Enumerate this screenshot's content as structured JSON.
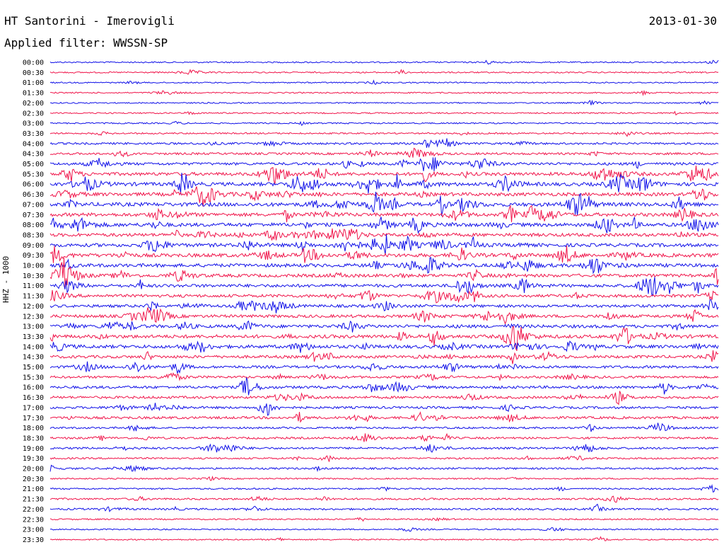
{
  "header": {
    "station": "HT Santorini - Imerovigli",
    "date": "2013-01-30",
    "filter": "Applied filter: WWSSN-SP"
  },
  "chart_data": {
    "type": "line",
    "title": "",
    "ylabel": "HHZ - 1000",
    "xlabel": "",
    "series_colors": [
      "#1010e8",
      "#f0144a"
    ],
    "rows": [
      {
        "time": "00:00",
        "color": "#1010e8",
        "activity": 0.15
      },
      {
        "time": "00:30",
        "color": "#f0144a",
        "activity": 0.15
      },
      {
        "time": "01:00",
        "color": "#1010e8",
        "activity": 0.12
      },
      {
        "time": "01:30",
        "color": "#f0144a",
        "activity": 0.12
      },
      {
        "time": "02:00",
        "color": "#1010e8",
        "activity": 0.12
      },
      {
        "time": "02:30",
        "color": "#f0144a",
        "activity": 0.15
      },
      {
        "time": "03:00",
        "color": "#1010e8",
        "activity": 0.15
      },
      {
        "time": "03:30",
        "color": "#f0144a",
        "activity": 0.2
      },
      {
        "time": "04:00",
        "color": "#1010e8",
        "activity": 0.35
      },
      {
        "time": "04:30",
        "color": "#f0144a",
        "activity": 0.4
      },
      {
        "time": "05:00",
        "color": "#1010e8",
        "activity": 0.55
      },
      {
        "time": "05:30",
        "color": "#f0144a",
        "activity": 0.75
      },
      {
        "time": "06:00",
        "color": "#1010e8",
        "activity": 0.85
      },
      {
        "time": "06:30",
        "color": "#f0144a",
        "activity": 0.8
      },
      {
        "time": "07:00",
        "color": "#1010e8",
        "activity": 0.9
      },
      {
        "time": "07:30",
        "color": "#f0144a",
        "activity": 0.8
      },
      {
        "time": "08:00",
        "color": "#1010e8",
        "activity": 0.85
      },
      {
        "time": "08:30",
        "color": "#f0144a",
        "activity": 0.75
      },
      {
        "time": "09:00",
        "color": "#1010e8",
        "activity": 0.8
      },
      {
        "time": "09:30",
        "color": "#f0144a",
        "activity": 0.85
      },
      {
        "time": "10:00",
        "color": "#1010e8",
        "activity": 0.8
      },
      {
        "time": "10:30",
        "color": "#f0144a",
        "activity": 0.7
      },
      {
        "time": "11:00",
        "color": "#1010e8",
        "activity": 0.7
      },
      {
        "time": "11:30",
        "color": "#f0144a",
        "activity": 0.65
      },
      {
        "time": "12:00",
        "color": "#1010e8",
        "activity": 0.6
      },
      {
        "time": "12:30",
        "color": "#f0144a",
        "activity": 0.65
      },
      {
        "time": "13:00",
        "color": "#1010e8",
        "activity": 0.7
      },
      {
        "time": "13:30",
        "color": "#f0144a",
        "activity": 0.8
      },
      {
        "time": "14:00",
        "color": "#1010e8",
        "activity": 0.75
      },
      {
        "time": "14:30",
        "color": "#f0144a",
        "activity": 0.6
      },
      {
        "time": "15:00",
        "color": "#1010e8",
        "activity": 0.55
      },
      {
        "time": "15:30",
        "color": "#f0144a",
        "activity": 0.45
      },
      {
        "time": "16:00",
        "color": "#1010e8",
        "activity": 0.55
      },
      {
        "time": "16:30",
        "color": "#f0144a",
        "activity": 0.5
      },
      {
        "time": "17:00",
        "color": "#1010e8",
        "activity": 0.45
      },
      {
        "time": "17:30",
        "color": "#f0144a",
        "activity": 0.5
      },
      {
        "time": "18:00",
        "color": "#1010e8",
        "activity": 0.3
      },
      {
        "time": "18:30",
        "color": "#f0144a",
        "activity": 0.35
      },
      {
        "time": "19:00",
        "color": "#1010e8",
        "activity": 0.35
      },
      {
        "time": "19:30",
        "color": "#f0144a",
        "activity": 0.25
      },
      {
        "time": "20:00",
        "color": "#1010e8",
        "activity": 0.3
      },
      {
        "time": "20:30",
        "color": "#f0144a",
        "activity": 0.15
      },
      {
        "time": "21:00",
        "color": "#1010e8",
        "activity": 0.2
      },
      {
        "time": "21:30",
        "color": "#f0144a",
        "activity": 0.3
      },
      {
        "time": "22:00",
        "color": "#1010e8",
        "activity": 0.3
      },
      {
        "time": "22:30",
        "color": "#f0144a",
        "activity": 0.15
      },
      {
        "time": "23:00",
        "color": "#1010e8",
        "activity": 0.12
      },
      {
        "time": "23:30",
        "color": "#f0144a",
        "activity": 0.12
      }
    ]
  }
}
